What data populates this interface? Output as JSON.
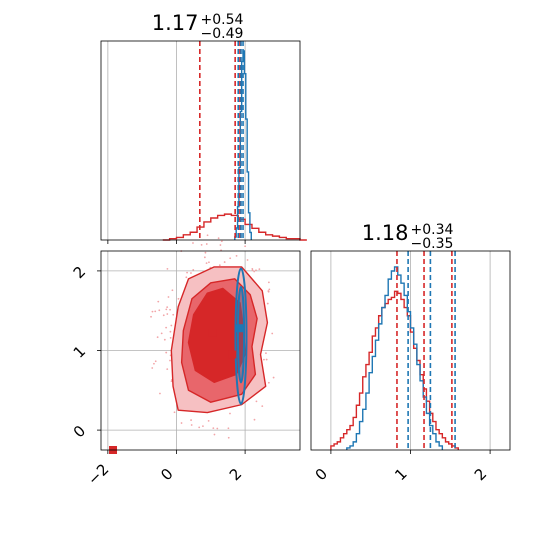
{
  "chart_data": {
    "type": "corner",
    "grid": true,
    "colors": {
      "red": "#d62728",
      "blue": "#1f77b4",
      "red_fill_dark": "#d62728",
      "red_fill_mid": "#e8666b",
      "red_fill_light": "#f6c0c2"
    },
    "panels": [
      {
        "id": "marginal-param-1",
        "type": "histogram",
        "title": {
          "value": "1.17",
          "plus": "+0.54",
          "minus": "−0.49"
        },
        "xlim": [
          -2.2,
          3.6
        ],
        "xticks": [
          -2,
          0,
          2
        ],
        "quantile_lines": {
          "red": [
            0.68,
            1.71,
            1.85
          ],
          "blue": [
            1.8,
            1.88,
            1.94
          ]
        },
        "series": [
          {
            "name": "",
            "color": "red",
            "bin_start": -0.4,
            "bin_width": 0.2,
            "counts": [
              0,
              1,
              2,
              4,
              6,
              10,
              14,
              17,
              19,
              20,
              19,
              16,
              12,
              9,
              6,
              4,
              3,
              2,
              1,
              1,
              0
            ]
          },
          {
            "name": "",
            "color": "blue",
            "bin_start": 1.7,
            "bin_width": 0.04,
            "counts": [
              2,
              8,
              22,
              48,
              85,
              118,
              125,
              110,
              80,
              45,
              18,
              5
            ]
          }
        ]
      },
      {
        "id": "joint-param-1-2",
        "type": "contour",
        "xlim": [
          -2.2,
          3.6
        ],
        "ylim": [
          -0.25,
          2.25
        ],
        "xticks": [
          -2,
          0,
          2
        ],
        "yticks": [
          0,
          1,
          2
        ],
        "red_levels": [
          {
            "fill": "light",
            "points": [
              [
                0.05,
                0.25
              ],
              [
                0.9,
                0.22
              ],
              [
                1.9,
                0.32
              ],
              [
                2.6,
                0.55
              ],
              [
                2.45,
                0.95
              ],
              [
                2.65,
                1.35
              ],
              [
                2.5,
                1.75
              ],
              [
                1.9,
                2.05
              ],
              [
                1.1,
                2.05
              ],
              [
                0.35,
                1.9
              ],
              [
                0.05,
                1.55
              ],
              [
                -0.15,
                1.0
              ],
              [
                -0.1,
                0.55
              ]
            ]
          },
          {
            "fill": "mid",
            "points": [
              [
                0.35,
                0.5
              ],
              [
                1.0,
                0.35
              ],
              [
                1.9,
                0.45
              ],
              [
                2.3,
                0.7
              ],
              [
                2.2,
                1.05
              ],
              [
                2.35,
                1.4
              ],
              [
                2.15,
                1.7
              ],
              [
                1.7,
                1.9
              ],
              [
                1.0,
                1.85
              ],
              [
                0.45,
                1.65
              ],
              [
                0.2,
                1.25
              ],
              [
                0.15,
                0.85
              ]
            ]
          },
          {
            "fill": "dark",
            "points": [
              [
                0.55,
                0.75
              ],
              [
                1.1,
                0.6
              ],
              [
                1.75,
                0.7
              ],
              [
                2.0,
                0.95
              ],
              [
                1.95,
                1.3
              ],
              [
                1.85,
                1.6
              ],
              [
                1.35,
                1.78
              ],
              [
                0.9,
                1.72
              ],
              [
                0.5,
                1.45
              ],
              [
                0.35,
                1.1
              ]
            ]
          }
        ],
        "blue_levels": [
          {
            "cx": 1.88,
            "cy": 1.18,
            "rx": 0.16,
            "ry": 0.85
          },
          {
            "cx": 1.88,
            "cy": 1.2,
            "rx": 0.09,
            "ry": 0.6
          }
        ],
        "markers": [
          {
            "color": "red",
            "x": 1.06,
            "y": 1.22
          },
          {
            "color": "red",
            "x": 1.62,
            "y": 0.95
          },
          {
            "color": "blue",
            "x": 1.83,
            "y": 1.28
          },
          {
            "color": "red",
            "x": -1.85,
            "y": -0.25
          }
        ]
      },
      {
        "id": "marginal-param-2",
        "type": "histogram",
        "title": {
          "value": "1.18",
          "plus": "+0.34",
          "minus": "−0.35"
        },
        "xlim": [
          -0.25,
          2.25
        ],
        "xticks": [
          0,
          1,
          2
        ],
        "quantile_lines": {
          "red": [
            0.83,
            1.17,
            1.52
          ],
          "blue": [
            0.97,
            1.25,
            1.56
          ]
        },
        "series": [
          {
            "name": "",
            "color": "red",
            "bin_start": 0.0,
            "bin_width": 0.04,
            "counts": [
              2,
              3,
              4,
              6,
              8,
              10,
              12,
              16,
              22,
              28,
              36,
              42,
              48,
              56,
              60,
              66,
              70,
              72,
              74,
              75,
              78,
              77,
              74,
              70,
              66,
              58,
              50,
              44,
              37,
              30,
              24,
              18,
              14,
              10,
              8,
              6,
              4,
              3,
              2,
              1
            ]
          },
          {
            "name": "",
            "color": "blue",
            "bin_start": 0.2,
            "bin_width": 0.04,
            "counts": [
              1,
              2,
              4,
              8,
              14,
              20,
              28,
              38,
              46,
              54,
              62,
              70,
              76,
              84,
              88,
              90,
              86,
              82,
              76,
              68,
              60,
              52,
              42,
              34,
              26,
              18,
              12,
              8,
              4,
              2
            ]
          }
        ]
      }
    ]
  }
}
